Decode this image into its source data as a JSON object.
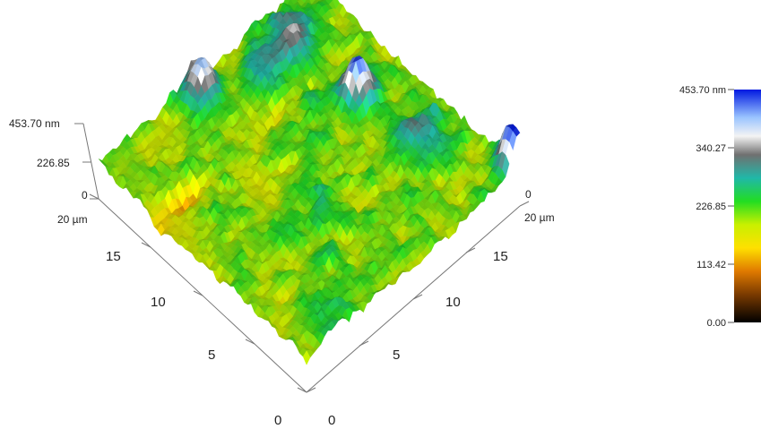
{
  "chart_data": {
    "type": "surface",
    "title": "",
    "units": {
      "xy": "µm",
      "z": "nm"
    },
    "x_axis": {
      "ticks": [
        "0",
        "5",
        "10",
        "15",
        "20 µm"
      ],
      "range": [
        0,
        20
      ]
    },
    "y_axis": {
      "ticks": [
        "0",
        "5",
        "10",
        "15",
        "20 µm"
      ],
      "range": [
        0,
        20
      ]
    },
    "z_axis": {
      "ticks": [
        "0",
        "226.85",
        "453.70 nm"
      ],
      "range": [
        0,
        453.7
      ]
    },
    "colorbar": {
      "ticks": [
        "0.00",
        "113.42",
        "226.85",
        "340.27",
        "453.70 nm"
      ],
      "values": [
        0,
        113.42,
        226.85,
        340.27,
        453.7
      ],
      "stops": [
        {
          "t": 0.0,
          "color": "#000000"
        },
        {
          "t": 0.12,
          "color": "#7a3a00"
        },
        {
          "t": 0.22,
          "color": "#e07a00"
        },
        {
          "t": 0.32,
          "color": "#ffe000"
        },
        {
          "t": 0.42,
          "color": "#c8f000"
        },
        {
          "t": 0.52,
          "color": "#22dd22"
        },
        {
          "t": 0.62,
          "color": "#20b8a8"
        },
        {
          "t": 0.72,
          "color": "#707070"
        },
        {
          "t": 0.8,
          "color": "#f4f4f4"
        },
        {
          "t": 0.88,
          "color": "#9ac4ff"
        },
        {
          "t": 1.0,
          "color": "#0018e0"
        }
      ]
    },
    "peaks": [
      {
        "x": 20,
        "y": 0.5,
        "z": 453.7
      },
      {
        "x": 16,
        "y": 11.5,
        "z": 452
      },
      {
        "x": 8.5,
        "y": 19,
        "z": 420
      },
      {
        "x": 15.5,
        "y": 17.5,
        "z": 300
      },
      {
        "x": 17,
        "y": 6.5,
        "z": 300
      },
      {
        "x": 12.5,
        "y": 17,
        "z": 270
      }
    ],
    "mean_height": 205
  }
}
